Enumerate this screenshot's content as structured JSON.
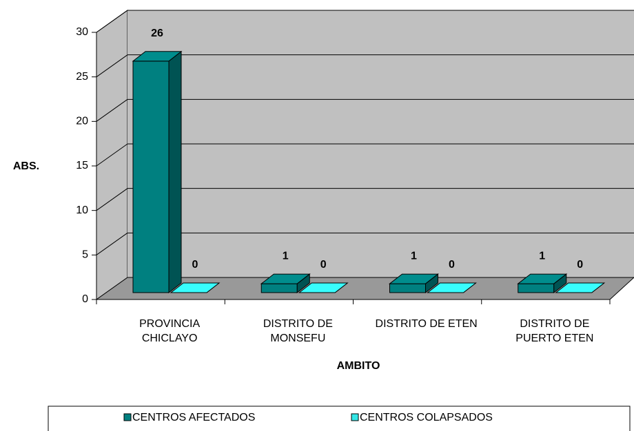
{
  "chart_data": {
    "type": "bar3d",
    "categories": [
      "PROVINCIA CHICLAYO",
      "DISTRITO DE MONSEFU",
      "DISTRITO DE ETEN",
      "DISTRITO DE PUERTO ETEN"
    ],
    "series": [
      {
        "name": "CENTROS AFECTADOS",
        "color": "#008080",
        "values": [
          26,
          1,
          1,
          1
        ]
      },
      {
        "name": "CENTROS COLAPSADOS",
        "color": "#33e6e6",
        "values": [
          0,
          0,
          0,
          0
        ]
      }
    ],
    "ylabel": "ABS.",
    "xlabel": "AMBITO",
    "ylim": [
      0,
      30
    ],
    "yticks": [
      0,
      5,
      10,
      15,
      20,
      25,
      30
    ],
    "grid": true,
    "legend": "bottom"
  }
}
